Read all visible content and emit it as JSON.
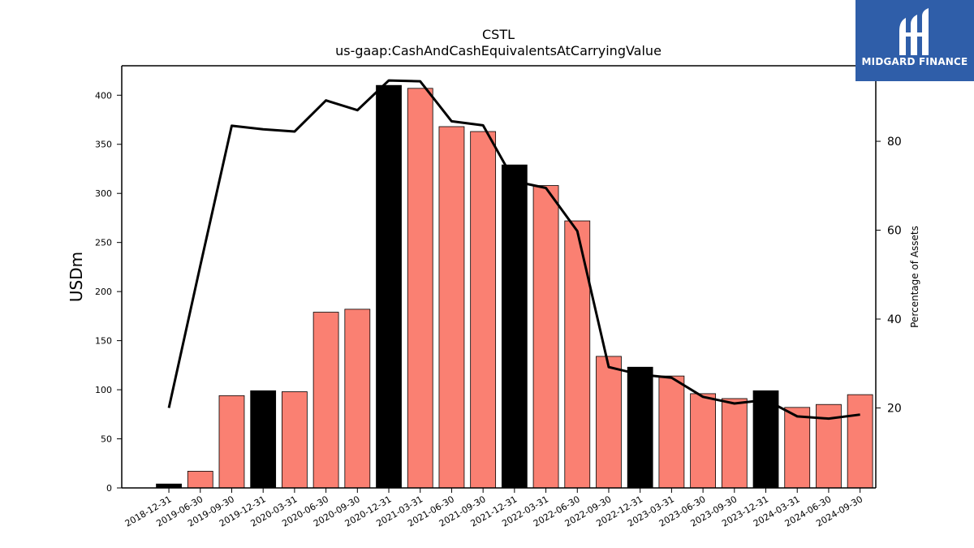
{
  "brand": {
    "name": "MIDGARD FINANCE",
    "bg_color": "#2f5ea9"
  },
  "chart_data": {
    "type": "bar",
    "title": "CSTL",
    "subtitle": "us-gaap:CashAndCashEquivalentsAtCarryingValue",
    "ylabel": "USDm",
    "y2label": "Percentage of Assets",
    "ylim": [
      0,
      430
    ],
    "y2lim": [
      2,
      97
    ],
    "yticks": [
      0,
      50,
      100,
      150,
      200,
      250,
      300,
      350,
      400
    ],
    "y2ticks": [
      20,
      40,
      60,
      80
    ],
    "grid": false,
    "colors": {
      "quarter": "#fa8072",
      "year_end": "#000000",
      "line": "#000000"
    },
    "categories": [
      "2018-12-31",
      "2019-06-30",
      "2019-09-30",
      "2019-12-31",
      "2020-03-31",
      "2020-06-30",
      "2020-09-30",
      "2020-12-31",
      "2021-03-31",
      "2021-06-30",
      "2021-09-30",
      "2021-12-31",
      "2022-03-31",
      "2022-06-30",
      "2022-09-30",
      "2022-12-31",
      "2023-03-31",
      "2023-06-30",
      "2023-09-30",
      "2023-12-31",
      "2024-03-31",
      "2024-06-30",
      "2024-09-30"
    ],
    "series": [
      {
        "values": [
          4,
          17,
          94,
          99,
          98,
          179,
          182,
          410,
          407,
          368,
          363,
          329,
          308,
          272,
          134,
          123,
          114,
          96,
          91,
          99,
          82,
          85,
          95
        ],
        "year_end": [
          true,
          false,
          false,
          true,
          false,
          false,
          false,
          true,
          false,
          false,
          false,
          true,
          false,
          false,
          false,
          true,
          false,
          false,
          false,
          true,
          false,
          false,
          false
        ]
      },
      {
        "axis": "right",
        "type": "line",
        "values": [
          20,
          52,
          83.5,
          82.7,
          82.2,
          89.2,
          87,
          93.7,
          93.5,
          84.5,
          83.6,
          71,
          69.5,
          59.8,
          29.2,
          27.5,
          26.8,
          22.5,
          21,
          21.8,
          18.1,
          17.6,
          18.5
        ]
      }
    ]
  }
}
